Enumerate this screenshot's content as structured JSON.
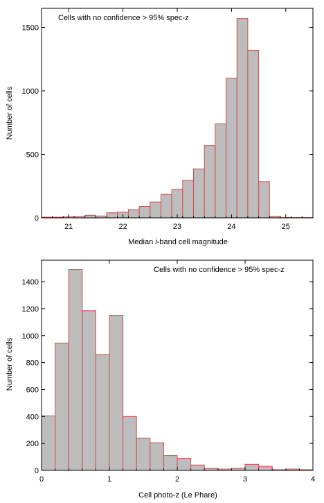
{
  "chart_data": [
    {
      "type": "bar",
      "title": "",
      "annotation": "Cells with no confidence > 95% spec-z",
      "xlabel": "Median i-band cell magnitude",
      "xlabel_parts": [
        "Median ",
        "i",
        "-band cell magnitude"
      ],
      "ylabel": "Number of cells",
      "xlim": [
        20.5,
        25.5
      ],
      "ylim": [
        0,
        1650
      ],
      "xticks": [
        21,
        22,
        23,
        24,
        25
      ],
      "yticks": [
        0,
        500,
        1000,
        1500
      ],
      "bin_width": 0.2,
      "bin_edges_start": 20.5,
      "values": [
        5,
        5,
        8,
        10,
        20,
        15,
        40,
        45,
        65,
        90,
        125,
        185,
        225,
        295,
        385,
        570,
        740,
        1100,
        1570,
        1320,
        285,
        12,
        2,
        2,
        2
      ],
      "grid": false,
      "bar_fill": "#bdbdbd",
      "bar_edge": "#d24a4a"
    },
    {
      "type": "bar",
      "title": "",
      "annotation": "Cells with no confidence > 95% spec-z",
      "xlabel": "Cell photo-z (Le Phare)",
      "ylabel": "Number of cells",
      "xlim": [
        0,
        4
      ],
      "ylim": [
        0,
        1560
      ],
      "xticks": [
        0,
        1,
        2,
        3,
        4
      ],
      "yticks": [
        0,
        200,
        400,
        600,
        800,
        1000,
        1200,
        1400
      ],
      "bin_width": 0.2,
      "bin_edges_start": 0,
      "values": [
        405,
        945,
        1490,
        1185,
        860,
        1150,
        400,
        240,
        205,
        110,
        90,
        40,
        15,
        10,
        15,
        45,
        30,
        5,
        10,
        5
      ],
      "grid": false,
      "bar_fill": "#bdbdbd",
      "bar_edge": "#d24a4a"
    }
  ]
}
